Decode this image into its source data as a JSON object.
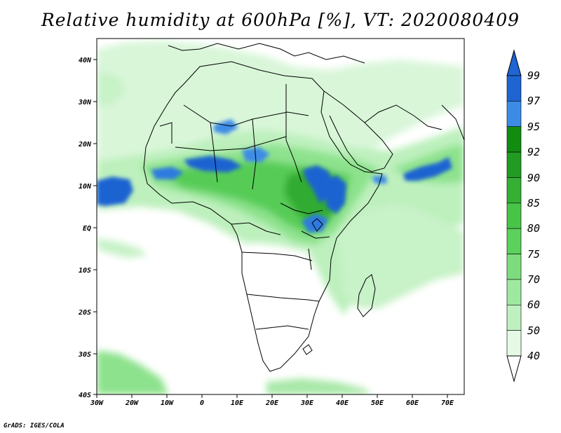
{
  "title": "Relative humidity at 600hPa [%], VT: 2020080409",
  "footer": "GrADS: IGES/COLA",
  "x_ticks": [
    "30W",
    "20W",
    "10W",
    "0",
    "10E",
    "20E",
    "30E",
    "40E",
    "50E",
    "60E",
    "70E"
  ],
  "y_ticks": [
    "40N",
    "30N",
    "20N",
    "10N",
    "EQ",
    "10S",
    "20S",
    "30S",
    "40S"
  ],
  "colorbar": {
    "labels": [
      "99",
      "97",
      "95",
      "92",
      "90",
      "85",
      "80",
      "75",
      "70",
      "60",
      "50",
      "40"
    ],
    "colors": [
      "#1e64d2",
      "#3c8ce6",
      "#118c11",
      "#219b21",
      "#35b035",
      "#48c448",
      "#5cd15c",
      "#7ddc7d",
      "#9fe89f",
      "#c0f0c0",
      "#e4fae4"
    ]
  }
}
